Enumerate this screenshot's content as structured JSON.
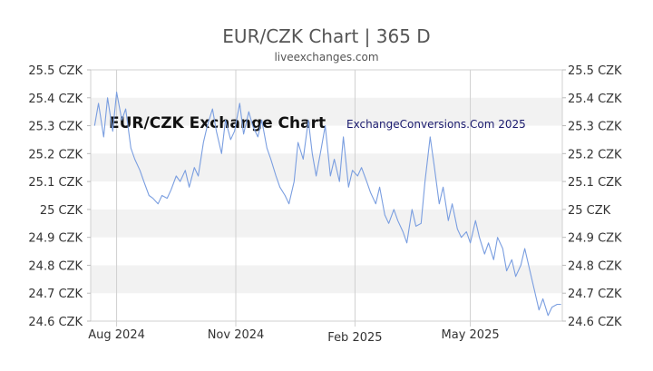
{
  "chart_data": {
    "type": "line",
    "title": "EUR/CZK Chart | 365 D",
    "subtitle": "liveexchanges.com",
    "y_tick_labels": [
      "25.5 CZK",
      "25.4 CZK",
      "25.3 CZK",
      "25.2 CZK",
      "25.1 CZK",
      "25 CZK",
      "24.9 CZK",
      "24.8 CZK",
      "24.7 CZK",
      "24.6 CZK"
    ],
    "y_ticks": [
      25.5,
      25.4,
      25.3,
      25.2,
      25.1,
      25.0,
      24.9,
      24.8,
      24.7,
      24.6
    ],
    "ylim": [
      24.6,
      25.5
    ],
    "x_ticks": [
      {
        "label": "Aug 2024",
        "date": "2024-08-01"
      },
      {
        "label": "Nov 2024",
        "date": "2024-11-01"
      },
      {
        "label": "Feb 2025",
        "date": "2025-02-01"
      },
      {
        "label": "May 2025",
        "date": "2025-05-01"
      }
    ],
    "xlim": [
      "2024-07-12",
      "2025-07-11"
    ],
    "grid": "horizontal alternating bands and vertical month lines",
    "watermark_left": "EUR/CZK Exchange Chart",
    "watermark_right": "ExchangeConversions.Com 2025",
    "line_color": "#7a9ee0",
    "series": [
      {
        "x": [
          "2024-07-15",
          "2024-07-18",
          "2024-07-22",
          "2024-07-25",
          "2024-07-29",
          "2024-08-01",
          "2024-08-05",
          "2024-08-08",
          "2024-08-12",
          "2024-08-15",
          "2024-08-19",
          "2024-08-22",
          "2024-08-26",
          "2024-08-29",
          "2024-09-02",
          "2024-09-05",
          "2024-09-09",
          "2024-09-12",
          "2024-09-16",
          "2024-09-19",
          "2024-09-23",
          "2024-09-26",
          "2024-09-30",
          "2024-10-03",
          "2024-10-07",
          "2024-10-10",
          "2024-10-14",
          "2024-10-17",
          "2024-10-21",
          "2024-10-24",
          "2024-10-28",
          "2024-10-31",
          "2024-11-04",
          "2024-11-07",
          "2024-11-11",
          "2024-11-14",
          "2024-11-18",
          "2024-11-21",
          "2024-11-25",
          "2024-11-28",
          "2024-12-02",
          "2024-12-05",
          "2024-12-09",
          "2024-12-12",
          "2024-12-16",
          "2024-12-19",
          "2024-12-23",
          "2024-12-27",
          "2024-12-30",
          "2025-01-02",
          "2025-01-06",
          "2025-01-09",
          "2025-01-13",
          "2025-01-16",
          "2025-01-20",
          "2025-01-23",
          "2025-01-27",
          "2025-01-30",
          "2025-02-03",
          "2025-02-06",
          "2025-02-10",
          "2025-02-13",
          "2025-02-17",
          "2025-02-20",
          "2025-02-24",
          "2025-02-27",
          "2025-03-03",
          "2025-03-06",
          "2025-03-10",
          "2025-03-13",
          "2025-03-17",
          "2025-03-20",
          "2025-03-24",
          "2025-03-27",
          "2025-03-31",
          "2025-04-03",
          "2025-04-07",
          "2025-04-10",
          "2025-04-14",
          "2025-04-17",
          "2025-04-21",
          "2025-04-24",
          "2025-04-28",
          "2025-05-01",
          "2025-05-05",
          "2025-05-08",
          "2025-05-12",
          "2025-05-15",
          "2025-05-19",
          "2025-05-22",
          "2025-05-26",
          "2025-05-29",
          "2025-06-02",
          "2025-06-05",
          "2025-06-09",
          "2025-06-12",
          "2025-06-16",
          "2025-06-19",
          "2025-06-23",
          "2025-06-26",
          "2025-06-30",
          "2025-07-03",
          "2025-07-07",
          "2025-07-10"
        ],
        "y": [
          25.3,
          25.38,
          25.26,
          25.4,
          25.28,
          25.42,
          25.32,
          25.36,
          25.22,
          25.18,
          25.14,
          25.1,
          25.05,
          25.04,
          25.02,
          25.05,
          25.04,
          25.07,
          25.12,
          25.1,
          25.14,
          25.08,
          25.15,
          25.12,
          25.24,
          25.3,
          25.36,
          25.28,
          25.2,
          25.32,
          25.25,
          25.28,
          25.38,
          25.27,
          25.35,
          25.3,
          25.26,
          25.32,
          25.22,
          25.18,
          25.12,
          25.08,
          25.05,
          25.02,
          25.1,
          25.24,
          25.18,
          25.32,
          25.2,
          25.12,
          25.22,
          25.3,
          25.12,
          25.18,
          25.1,
          25.26,
          25.08,
          25.14,
          25.12,
          25.15,
          25.1,
          25.06,
          25.02,
          25.08,
          24.98,
          24.95,
          25.0,
          24.96,
          24.92,
          24.88,
          25.0,
          24.94,
          24.95,
          25.1,
          25.26,
          25.16,
          25.02,
          25.08,
          24.96,
          25.02,
          24.93,
          24.9,
          24.92,
          24.88,
          24.96,
          24.9,
          24.84,
          24.88,
          24.82,
          24.9,
          24.86,
          24.78,
          24.82,
          24.76,
          24.8,
          24.86,
          24.78,
          24.72,
          24.64,
          24.68,
          24.62,
          24.65,
          24.66,
          24.66
        ]
      }
    ]
  }
}
